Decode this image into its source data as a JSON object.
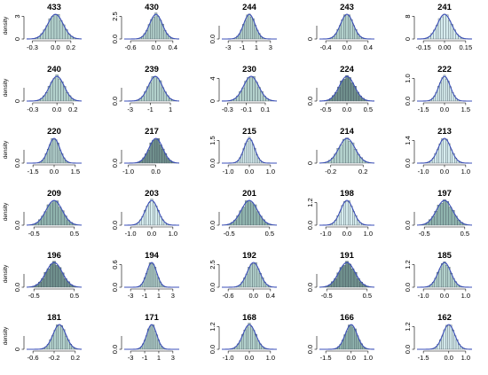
{
  "palette": {
    "axis": "#000000",
    "curve": "#3b4fb8",
    "bar_stroke": "#40505a",
    "bar_fills": [
      "#d6ecee",
      "#b3d1cc",
      "#8fb3ad",
      "#6f8f8c"
    ]
  },
  "panels": [
    {
      "title": "433",
      "ylabel": "density",
      "xticks": [
        "-0.3",
        "0.0",
        "0.2"
      ],
      "yticks": [
        "0",
        "3"
      ],
      "mean": 0.0,
      "sd": 0.1,
      "shade": 1
    },
    {
      "title": "430",
      "ylabel": "",
      "xticks": [
        "-0.6",
        "0.0",
        "0.4"
      ],
      "yticks": [
        "0.0",
        "2.5"
      ],
      "mean": 0.0,
      "sd": 0.15,
      "shade": 1
    },
    {
      "title": "244",
      "ylabel": "",
      "xticks": [
        "-3",
        "-1",
        "1",
        "3"
      ],
      "yticks": [
        "0.0"
      ],
      "mean": 0.0,
      "sd": 0.8,
      "shade": 1
    },
    {
      "title": "243",
      "ylabel": "",
      "xticks": [
        "-0.4",
        "0.0",
        "0.4"
      ],
      "yticks": [
        "0"
      ],
      "mean": 0.0,
      "sd": 0.12,
      "shade": 1
    },
    {
      "title": "241",
      "ylabel": "",
      "xticks": [
        "-0.15",
        "0.00",
        "0.15"
      ],
      "yticks": [
        "0",
        "8"
      ],
      "mean": 0.0,
      "sd": 0.05,
      "shade": 0
    },
    {
      "title": "240",
      "ylabel": "density",
      "xticks": [
        "-0.3",
        "0.0",
        "0.2"
      ],
      "yticks": [
        "0"
      ],
      "mean": 0.0,
      "sd": 0.09,
      "shade": 1
    },
    {
      "title": "239",
      "ylabel": "",
      "xticks": [
        "-3",
        "-1",
        "1"
      ],
      "yticks": [
        "0.0"
      ],
      "mean": -0.5,
      "sd": 0.7,
      "shade": 1
    },
    {
      "title": "230",
      "ylabel": "",
      "xticks": [
        "-0.3",
        "-0.1",
        "0.1"
      ],
      "yticks": [
        "0",
        "4"
      ],
      "mean": -0.05,
      "sd": 0.08,
      "shade": 1
    },
    {
      "title": "224",
      "ylabel": "",
      "xticks": [
        "-0.5",
        "0.0",
        "0.5"
      ],
      "yticks": [
        "0.0"
      ],
      "mean": 0.0,
      "sd": 0.18,
      "shade": 3
    },
    {
      "title": "222",
      "ylabel": "",
      "xticks": [
        "-1.5",
        "0.0",
        "1.5"
      ],
      "yticks": [
        "0.0",
        "1.0"
      ],
      "mean": 0.0,
      "sd": 0.4,
      "shade": 0
    },
    {
      "title": "220",
      "ylabel": "density",
      "xticks": [
        "-1.5",
        "0.0",
        "1.5"
      ],
      "yticks": [
        "0.0"
      ],
      "mean": 0.0,
      "sd": 0.4,
      "shade": 1
    },
    {
      "title": "217",
      "ylabel": "",
      "xticks": [
        "-1.0",
        "0.0"
      ],
      "yticks": [
        "0.0"
      ],
      "mean": 0.0,
      "sd": 0.25,
      "shade": 3
    },
    {
      "title": "215",
      "ylabel": "",
      "xticks": [
        "-1.0",
        "0.0",
        "1.0"
      ],
      "yticks": [
        "0.0",
        "1.5"
      ],
      "mean": 0.0,
      "sd": 0.25,
      "shade": 0
    },
    {
      "title": "214",
      "ylabel": "",
      "xticks": [
        "-0.2",
        "0.2"
      ],
      "yticks": [
        "0"
      ],
      "mean": 0.0,
      "sd": 0.1,
      "shade": 1
    },
    {
      "title": "213",
      "ylabel": "",
      "xticks": [
        "-1.0",
        "0.0",
        "1.0"
      ],
      "yticks": [
        "0.0",
        "1.4"
      ],
      "mean": 0.0,
      "sd": 0.3,
      "shade": 0
    },
    {
      "title": "209",
      "ylabel": "density",
      "xticks": [
        "-0.5",
        "0.5"
      ],
      "yticks": [
        "0.0"
      ],
      "mean": 0.0,
      "sd": 0.2,
      "shade": 2
    },
    {
      "title": "203",
      "ylabel": "",
      "xticks": [
        "-1.0",
        "0.0",
        "1.0"
      ],
      "yticks": [
        "0.0"
      ],
      "mean": 0.0,
      "sd": 0.3,
      "shade": 0
    },
    {
      "title": "201",
      "ylabel": "",
      "xticks": [
        "-0.5",
        "0.5"
      ],
      "yticks": [
        "0.0"
      ],
      "mean": 0.0,
      "sd": 0.2,
      "shade": 2
    },
    {
      "title": "198",
      "ylabel": "",
      "xticks": [
        "-1.0",
        "0.0",
        "1.0"
      ],
      "yticks": [
        "0.0",
        "1.2"
      ],
      "mean": 0.0,
      "sd": 0.3,
      "shade": 0
    },
    {
      "title": "197",
      "ylabel": "",
      "xticks": [
        "-0.5",
        "0.5"
      ],
      "yticks": [
        "0.0"
      ],
      "mean": 0.0,
      "sd": 0.2,
      "shade": 2
    },
    {
      "title": "196",
      "ylabel": "density",
      "xticks": [
        "-0.5",
        "0.5"
      ],
      "yticks": [
        "0.0"
      ],
      "mean": 0.0,
      "sd": 0.2,
      "shade": 3
    },
    {
      "title": "194",
      "ylabel": "",
      "xticks": [
        "-3",
        "-1",
        "1",
        "3"
      ],
      "yticks": [
        "0.0",
        "0.6"
      ],
      "mean": 0.0,
      "sd": 0.7,
      "shade": 1
    },
    {
      "title": "192",
      "ylabel": "",
      "xticks": [
        "-0.6",
        "0.0",
        "0.4"
      ],
      "yticks": [
        "0.0",
        "2.5"
      ],
      "mean": 0.0,
      "sd": 0.15,
      "shade": 1
    },
    {
      "title": "191",
      "ylabel": "",
      "xticks": [
        "-0.5",
        "0.5"
      ],
      "yticks": [
        "0.0"
      ],
      "mean": 0.0,
      "sd": 0.2,
      "shade": 3
    },
    {
      "title": "185",
      "ylabel": "",
      "xticks": [
        "-1.0",
        "0.0",
        "1.0"
      ],
      "yticks": [
        "0.0",
        "1.2"
      ],
      "mean": 0.0,
      "sd": 0.3,
      "shade": 1
    },
    {
      "title": "181",
      "ylabel": "density",
      "xticks": [
        "-0.6",
        "-0.2",
        "0.2"
      ],
      "yticks": [
        "0"
      ],
      "mean": -0.1,
      "sd": 0.12,
      "shade": 1
    },
    {
      "title": "171",
      "ylabel": "",
      "xticks": [
        "-3",
        "-1",
        "1",
        "3"
      ],
      "yticks": [
        "0.0"
      ],
      "mean": 0.0,
      "sd": 0.7,
      "shade": 1
    },
    {
      "title": "168",
      "ylabel": "",
      "xticks": [
        "-1.0",
        "0.0",
        "1.0"
      ],
      "yticks": [
        "0.0",
        "1.2"
      ],
      "mean": 0.0,
      "sd": 0.3,
      "shade": 1
    },
    {
      "title": "166",
      "ylabel": "",
      "xticks": [
        "-1.5",
        "0.0",
        "1.0"
      ],
      "yticks": [
        "0.0"
      ],
      "mean": 0.0,
      "sd": 0.35,
      "shade": 2
    },
    {
      "title": "162",
      "ylabel": "",
      "xticks": [
        "-1.5",
        "0.0",
        "1.0"
      ],
      "yticks": [
        "0.0",
        "1.2"
      ],
      "mean": 0.0,
      "sd": 0.35,
      "shade": 0
    }
  ]
}
